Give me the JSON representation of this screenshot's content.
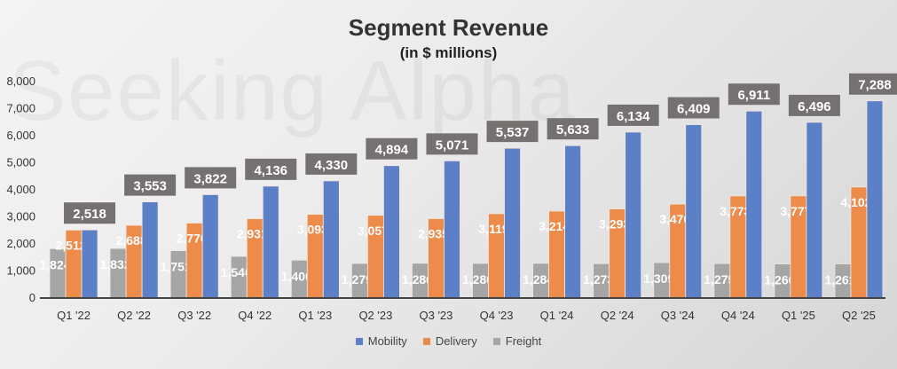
{
  "watermark": "Seeking Alpha",
  "chart_data": {
    "type": "bar",
    "title": "Segment Revenue",
    "subtitle": "(in $ millions)",
    "xlabel": "",
    "ylabel": "",
    "ylim": [
      0,
      8000
    ],
    "yticks": [
      0,
      1000,
      2000,
      3000,
      4000,
      5000,
      6000,
      7000,
      8000
    ],
    "ytick_labels": [
      "0",
      "1,000",
      "2,000",
      "3,000",
      "4,000",
      "5,000",
      "6,000",
      "7,000",
      "8,000"
    ],
    "categories": [
      "Q1 '22",
      "Q2 '22",
      "Q3 '22",
      "Q4 '22",
      "Q1 '23",
      "Q2 '23",
      "Q3 '23",
      "Q4 '23",
      "Q1 '24",
      "Q2 '24",
      "Q3 '24",
      "Q4 '24",
      "Q1 '25",
      "Q2 '25"
    ],
    "series": [
      {
        "name": "Freight",
        "color": "#a5a5a5",
        "values": [
          1824,
          1832,
          1751,
          1540,
          1400,
          1279,
          1286,
          1280,
          1284,
          1273,
          1309,
          1275,
          1260,
          1261
        ]
      },
      {
        "name": "Delivery",
        "color": "#ed8b4a",
        "values": [
          2512,
          2688,
          2770,
          2931,
          3093,
          3057,
          2935,
          3119,
          3214,
          3293,
          3470,
          3773,
          3777,
          4102
        ]
      },
      {
        "name": "Mobility",
        "color": "#5b80c8",
        "values": [
          2518,
          3553,
          3822,
          4136,
          4330,
          4894,
          5071,
          5537,
          5633,
          6134,
          6409,
          6911,
          6496,
          7288
        ]
      }
    ],
    "legend_order": [
      "Mobility",
      "Delivery",
      "Freight"
    ],
    "legend": "bottom",
    "grid": false
  }
}
